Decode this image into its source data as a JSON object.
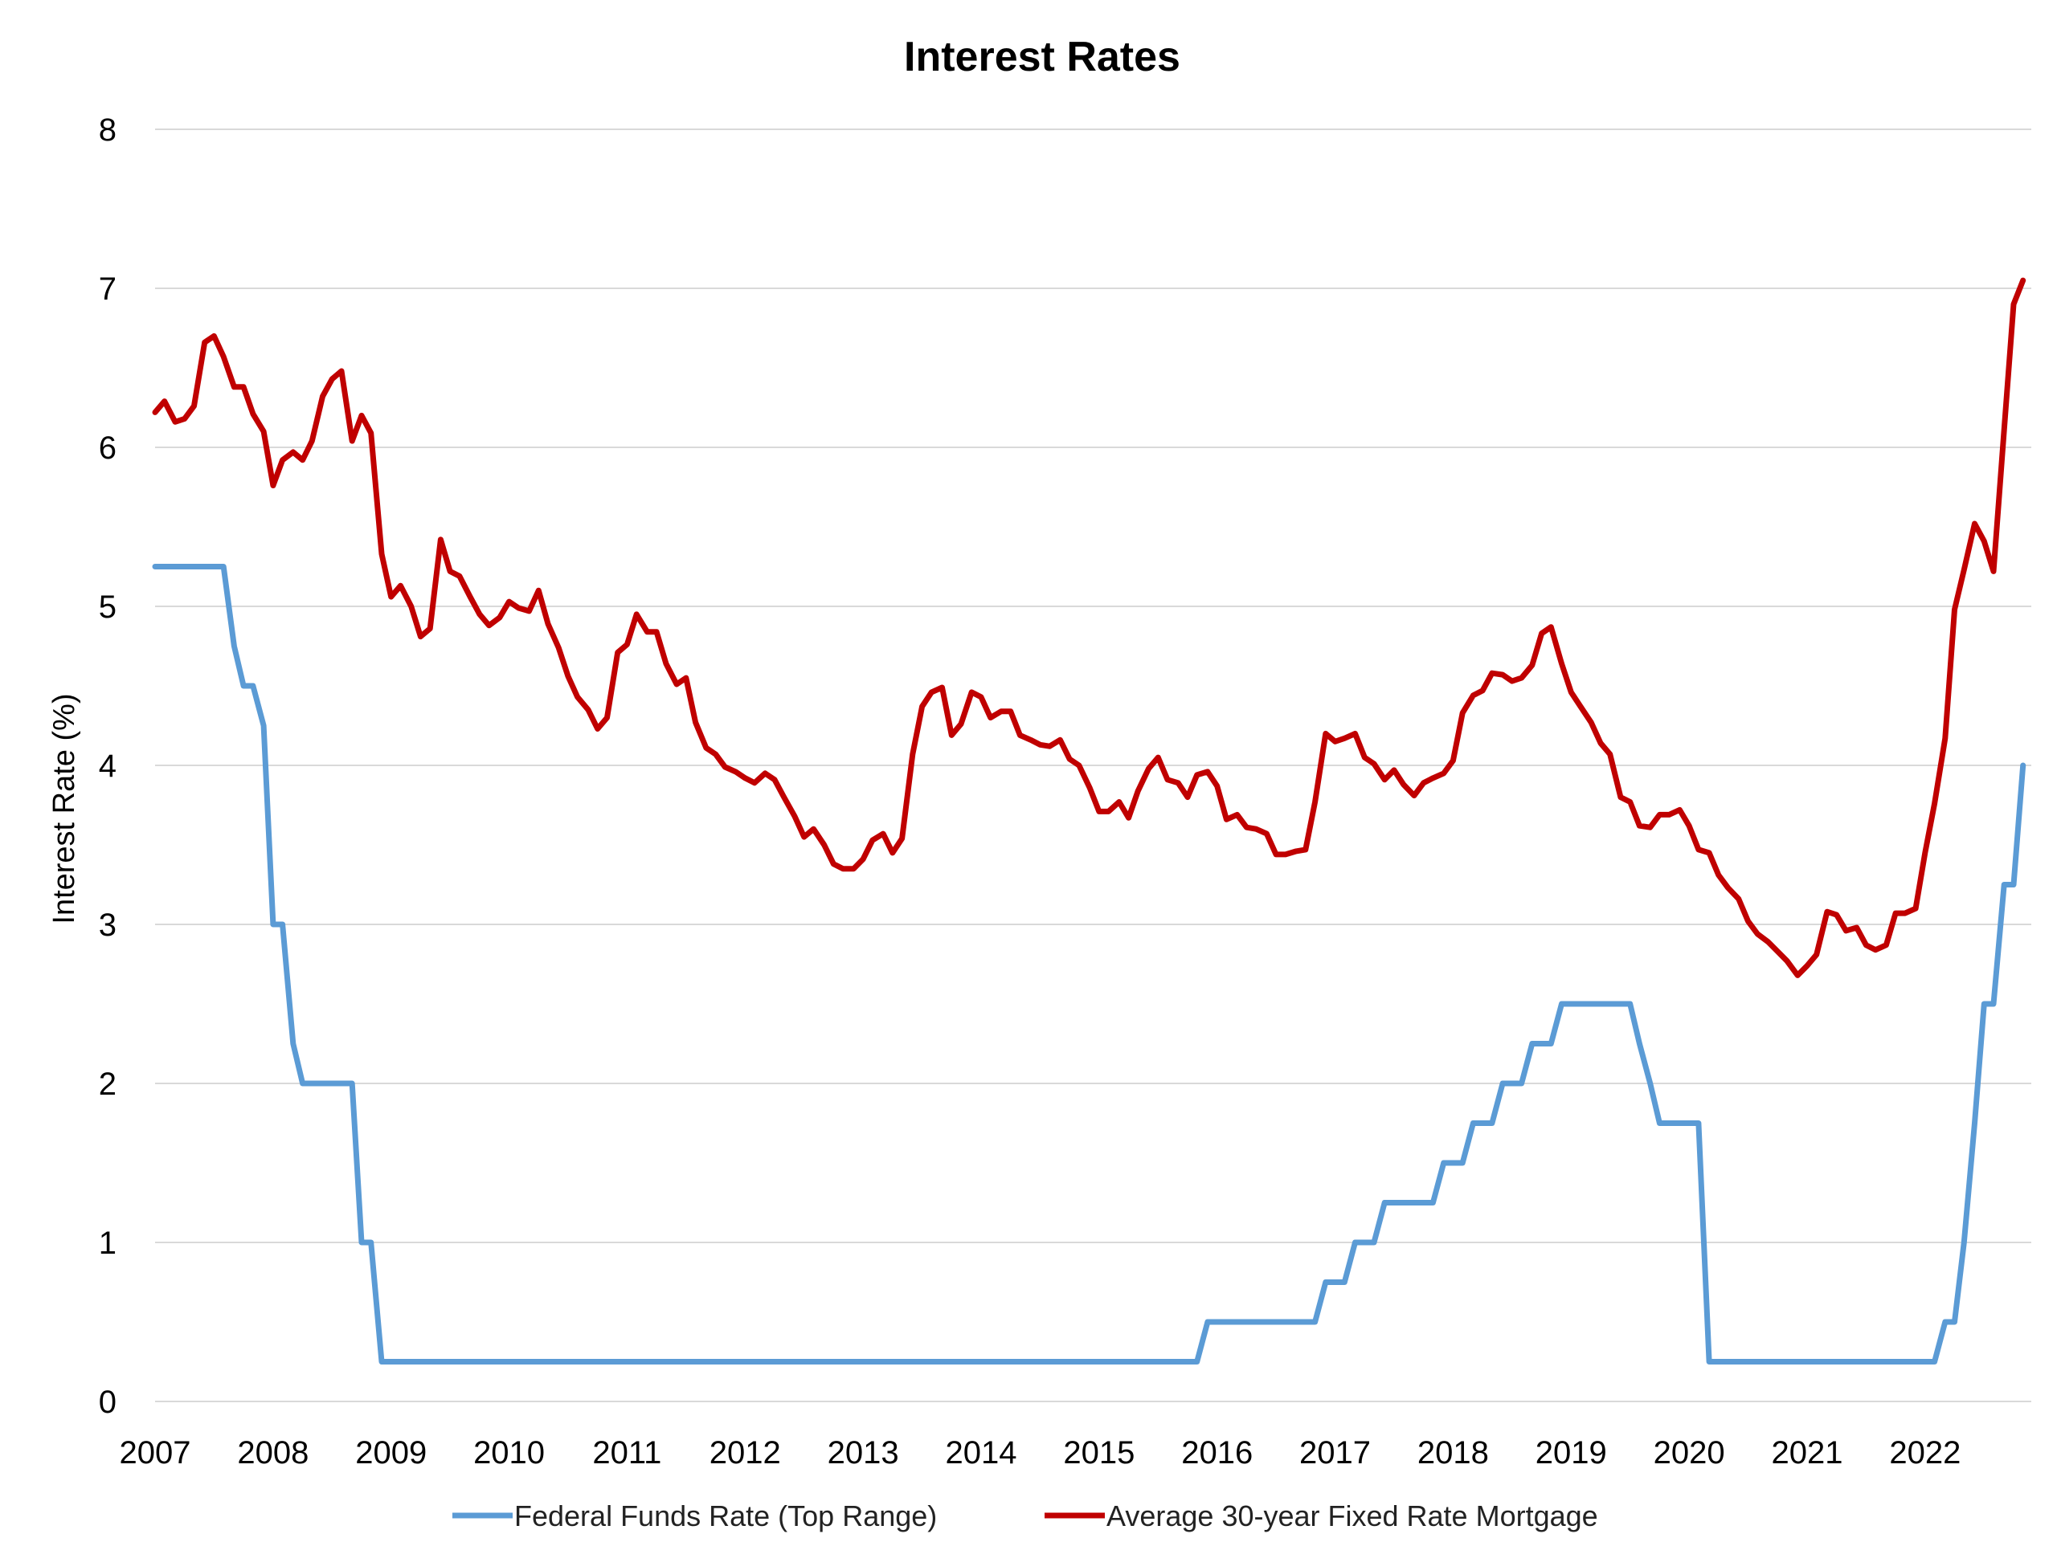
{
  "chart_data": {
    "type": "line",
    "title": "Interest Rates",
    "xlabel": "",
    "ylabel": "Interest Rate (%)",
    "ylim": [
      0,
      8
    ],
    "yticks": [
      "0",
      "1",
      "2",
      "3",
      "4",
      "5",
      "6",
      "7",
      "8"
    ],
    "xlim": [
      2007,
      2022.9
    ],
    "xticks": [
      "2007",
      "2008",
      "2009",
      "2010",
      "2011",
      "2012",
      "2013",
      "2014",
      "2015",
      "2016",
      "2017",
      "2018",
      "2019",
      "2020",
      "2021",
      "2022"
    ],
    "grid": "horizontal",
    "legend_position": "bottom",
    "series": [
      {
        "name": "Federal Funds Rate (Top Range)",
        "color": "#5b9bd5",
        "points": [
          [
            2007.0,
            5.25
          ],
          [
            2007.58,
            5.25
          ],
          [
            2007.67,
            4.75
          ],
          [
            2007.75,
            4.5
          ],
          [
            2007.83,
            4.5
          ],
          [
            2007.92,
            4.25
          ],
          [
            2008.0,
            3.0
          ],
          [
            2008.08,
            3.0
          ],
          [
            2008.17,
            2.25
          ],
          [
            2008.25,
            2.0
          ],
          [
            2008.67,
            2.0
          ],
          [
            2008.75,
            1.0
          ],
          [
            2008.83,
            1.0
          ],
          [
            2008.92,
            0.25
          ],
          [
            2015.83,
            0.25
          ],
          [
            2015.92,
            0.5
          ],
          [
            2016.83,
            0.5
          ],
          [
            2016.92,
            0.75
          ],
          [
            2017.08,
            0.75
          ],
          [
            2017.17,
            1.0
          ],
          [
            2017.33,
            1.0
          ],
          [
            2017.42,
            1.25
          ],
          [
            2017.83,
            1.25
          ],
          [
            2017.92,
            1.5
          ],
          [
            2018.08,
            1.5
          ],
          [
            2018.17,
            1.75
          ],
          [
            2018.33,
            1.75
          ],
          [
            2018.42,
            2.0
          ],
          [
            2018.58,
            2.0
          ],
          [
            2018.67,
            2.25
          ],
          [
            2018.83,
            2.25
          ],
          [
            2018.92,
            2.5
          ],
          [
            2019.5,
            2.5
          ],
          [
            2019.58,
            2.25
          ],
          [
            2019.67,
            2.0
          ],
          [
            2019.75,
            1.75
          ],
          [
            2020.08,
            1.75
          ],
          [
            2020.17,
            0.25
          ],
          [
            2022.08,
            0.25
          ],
          [
            2022.17,
            0.5
          ],
          [
            2022.25,
            0.5
          ],
          [
            2022.33,
            1.0
          ],
          [
            2022.42,
            1.75
          ],
          [
            2022.5,
            2.5
          ],
          [
            2022.58,
            2.5
          ],
          [
            2022.67,
            3.25
          ],
          [
            2022.75,
            3.25
          ],
          [
            2022.83,
            4.0
          ]
        ]
      },
      {
        "name": "Average 30-year Fixed Rate Mortgage",
        "color": "#c00000",
        "points": [
          [
            2007.0,
            6.22
          ],
          [
            2007.08,
            6.29
          ],
          [
            2007.17,
            6.16
          ],
          [
            2007.25,
            6.18
          ],
          [
            2007.33,
            6.26
          ],
          [
            2007.42,
            6.66
          ],
          [
            2007.5,
            6.7
          ],
          [
            2007.58,
            6.57
          ],
          [
            2007.67,
            6.38
          ],
          [
            2007.75,
            6.38
          ],
          [
            2007.83,
            6.21
          ],
          [
            2007.92,
            6.1
          ],
          [
            2008.0,
            5.76
          ],
          [
            2008.08,
            5.92
          ],
          [
            2008.17,
            5.97
          ],
          [
            2008.25,
            5.92
          ],
          [
            2008.33,
            6.04
          ],
          [
            2008.42,
            6.32
          ],
          [
            2008.5,
            6.43
          ],
          [
            2008.58,
            6.48
          ],
          [
            2008.67,
            6.04
          ],
          [
            2008.75,
            6.2
          ],
          [
            2008.83,
            6.09
          ],
          [
            2008.92,
            5.33
          ],
          [
            2009.0,
            5.06
          ],
          [
            2009.08,
            5.13
          ],
          [
            2009.17,
            5.0
          ],
          [
            2009.25,
            4.81
          ],
          [
            2009.33,
            4.86
          ],
          [
            2009.42,
            5.42
          ],
          [
            2009.5,
            5.22
          ],
          [
            2009.58,
            5.19
          ],
          [
            2009.67,
            5.06
          ],
          [
            2009.75,
            4.95
          ],
          [
            2009.83,
            4.88
          ],
          [
            2009.92,
            4.93
          ],
          [
            2010.0,
            5.03
          ],
          [
            2010.08,
            4.99
          ],
          [
            2010.17,
            4.97
          ],
          [
            2010.25,
            5.1
          ],
          [
            2010.33,
            4.89
          ],
          [
            2010.42,
            4.74
          ],
          [
            2010.5,
            4.56
          ],
          [
            2010.58,
            4.43
          ],
          [
            2010.67,
            4.35
          ],
          [
            2010.75,
            4.23
          ],
          [
            2010.83,
            4.3
          ],
          [
            2010.92,
            4.71
          ],
          [
            2011.0,
            4.76
          ],
          [
            2011.08,
            4.95
          ],
          [
            2011.17,
            4.84
          ],
          [
            2011.25,
            4.84
          ],
          [
            2011.33,
            4.64
          ],
          [
            2011.42,
            4.51
          ],
          [
            2011.5,
            4.55
          ],
          [
            2011.58,
            4.27
          ],
          [
            2011.67,
            4.11
          ],
          [
            2011.75,
            4.07
          ],
          [
            2011.83,
            3.99
          ],
          [
            2011.92,
            3.96
          ],
          [
            2012.0,
            3.92
          ],
          [
            2012.08,
            3.89
          ],
          [
            2012.17,
            3.95
          ],
          [
            2012.25,
            3.91
          ],
          [
            2012.33,
            3.8
          ],
          [
            2012.42,
            3.68
          ],
          [
            2012.5,
            3.55
          ],
          [
            2012.58,
            3.6
          ],
          [
            2012.67,
            3.5
          ],
          [
            2012.75,
            3.38
          ],
          [
            2012.83,
            3.35
          ],
          [
            2012.92,
            3.35
          ],
          [
            2013.0,
            3.41
          ],
          [
            2013.08,
            3.53
          ],
          [
            2013.17,
            3.57
          ],
          [
            2013.25,
            3.45
          ],
          [
            2013.33,
            3.54
          ],
          [
            2013.42,
            4.07
          ],
          [
            2013.5,
            4.37
          ],
          [
            2013.58,
            4.46
          ],
          [
            2013.67,
            4.49
          ],
          [
            2013.75,
            4.19
          ],
          [
            2013.83,
            4.26
          ],
          [
            2013.92,
            4.46
          ],
          [
            2014.0,
            4.43
          ],
          [
            2014.08,
            4.3
          ],
          [
            2014.17,
            4.34
          ],
          [
            2014.25,
            4.34
          ],
          [
            2014.33,
            4.19
          ],
          [
            2014.42,
            4.16
          ],
          [
            2014.5,
            4.13
          ],
          [
            2014.58,
            4.12
          ],
          [
            2014.67,
            4.16
          ],
          [
            2014.75,
            4.04
          ],
          [
            2014.83,
            4.0
          ],
          [
            2014.92,
            3.86
          ],
          [
            2015.0,
            3.71
          ],
          [
            2015.08,
            3.71
          ],
          [
            2015.17,
            3.77
          ],
          [
            2015.25,
            3.67
          ],
          [
            2015.33,
            3.84
          ],
          [
            2015.42,
            3.98
          ],
          [
            2015.5,
            4.05
          ],
          [
            2015.58,
            3.91
          ],
          [
            2015.67,
            3.89
          ],
          [
            2015.75,
            3.8
          ],
          [
            2015.83,
            3.94
          ],
          [
            2015.92,
            3.96
          ],
          [
            2016.0,
            3.87
          ],
          [
            2016.08,
            3.66
          ],
          [
            2016.17,
            3.69
          ],
          [
            2016.25,
            3.61
          ],
          [
            2016.33,
            3.6
          ],
          [
            2016.42,
            3.57
          ],
          [
            2016.5,
            3.44
          ],
          [
            2016.58,
            3.44
          ],
          [
            2016.67,
            3.46
          ],
          [
            2016.75,
            3.47
          ],
          [
            2016.83,
            3.77
          ],
          [
            2016.92,
            4.2
          ],
          [
            2017.0,
            4.15
          ],
          [
            2017.08,
            4.17
          ],
          [
            2017.17,
            4.2
          ],
          [
            2017.25,
            4.05
          ],
          [
            2017.33,
            4.01
          ],
          [
            2017.42,
            3.91
          ],
          [
            2017.5,
            3.97
          ],
          [
            2017.58,
            3.88
          ],
          [
            2017.67,
            3.81
          ],
          [
            2017.75,
            3.89
          ],
          [
            2017.83,
            3.92
          ],
          [
            2017.92,
            3.95
          ],
          [
            2018.0,
            4.03
          ],
          [
            2018.08,
            4.33
          ],
          [
            2018.17,
            4.44
          ],
          [
            2018.25,
            4.47
          ],
          [
            2018.33,
            4.58
          ],
          [
            2018.42,
            4.57
          ],
          [
            2018.5,
            4.53
          ],
          [
            2018.58,
            4.55
          ],
          [
            2018.67,
            4.63
          ],
          [
            2018.75,
            4.83
          ],
          [
            2018.83,
            4.87
          ],
          [
            2018.92,
            4.64
          ],
          [
            2019.0,
            4.46
          ],
          [
            2019.08,
            4.37
          ],
          [
            2019.17,
            4.27
          ],
          [
            2019.25,
            4.14
          ],
          [
            2019.33,
            4.07
          ],
          [
            2019.42,
            3.8
          ],
          [
            2019.5,
            3.77
          ],
          [
            2019.58,
            3.62
          ],
          [
            2019.67,
            3.61
          ],
          [
            2019.75,
            3.69
          ],
          [
            2019.83,
            3.69
          ],
          [
            2019.92,
            3.72
          ],
          [
            2020.0,
            3.62
          ],
          [
            2020.08,
            3.47
          ],
          [
            2020.17,
            3.45
          ],
          [
            2020.25,
            3.31
          ],
          [
            2020.33,
            3.23
          ],
          [
            2020.42,
            3.16
          ],
          [
            2020.5,
            3.02
          ],
          [
            2020.58,
            2.94
          ],
          [
            2020.67,
            2.89
          ],
          [
            2020.75,
            2.83
          ],
          [
            2020.83,
            2.77
          ],
          [
            2020.92,
            2.68
          ],
          [
            2021.0,
            2.74
          ],
          [
            2021.08,
            2.81
          ],
          [
            2021.17,
            3.08
          ],
          [
            2021.25,
            3.06
          ],
          [
            2021.33,
            2.96
          ],
          [
            2021.42,
            2.98
          ],
          [
            2021.5,
            2.87
          ],
          [
            2021.58,
            2.84
          ],
          [
            2021.67,
            2.87
          ],
          [
            2021.75,
            3.07
          ],
          [
            2021.83,
            3.07
          ],
          [
            2021.92,
            3.1
          ],
          [
            2022.0,
            3.45
          ],
          [
            2022.08,
            3.76
          ],
          [
            2022.17,
            4.17
          ],
          [
            2022.25,
            4.98
          ],
          [
            2022.33,
            5.23
          ],
          [
            2022.42,
            5.52
          ],
          [
            2022.5,
            5.41
          ],
          [
            2022.58,
            5.22
          ],
          [
            2022.67,
            6.11
          ],
          [
            2022.75,
            6.9
          ],
          [
            2022.83,
            7.05
          ]
        ]
      }
    ]
  }
}
